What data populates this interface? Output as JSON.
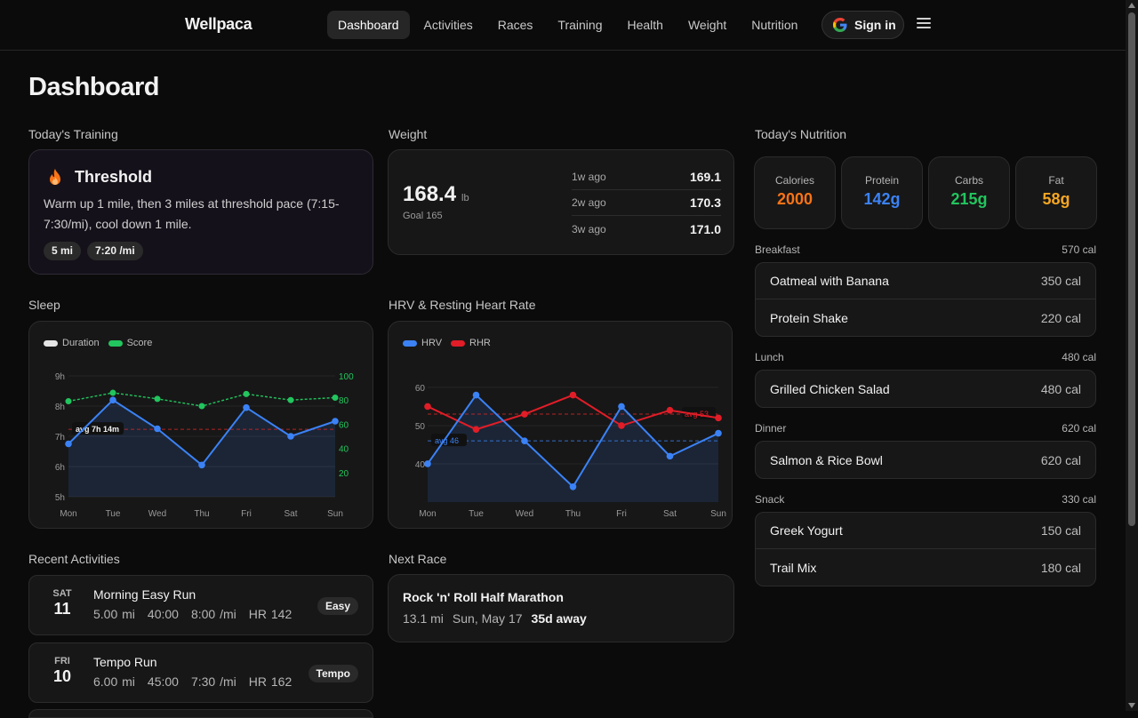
{
  "brand": "Wellpaca",
  "nav": {
    "items": [
      "Dashboard",
      "Activities",
      "Races",
      "Training",
      "Health",
      "Weight",
      "Nutrition"
    ],
    "active": "Dashboard",
    "signin_label": "Sign in"
  },
  "page_title": "Dashboard",
  "training": {
    "section": "Today's Training",
    "title": "Threshold",
    "description": "Warm up 1 mile, then 3 miles at threshold pace (7:15-7:30/mi), cool down 1 mile.",
    "distance": "5 mi",
    "pace": "7:20 /mi"
  },
  "weight": {
    "section": "Weight",
    "current": "168.4",
    "unit": "lb",
    "goal": "Goal 165",
    "history": [
      {
        "label": "1w ago",
        "value": "169.1"
      },
      {
        "label": "2w ago",
        "value": "170.3"
      },
      {
        "label": "3w ago",
        "value": "171.0"
      }
    ]
  },
  "nutrition": {
    "section": "Today's Nutrition",
    "macros": [
      {
        "label": "Calories",
        "value": "2000",
        "color": "#f97316"
      },
      {
        "label": "Protein",
        "value": "142g",
        "color": "#3b82f6"
      },
      {
        "label": "Carbs",
        "value": "215g",
        "color": "#22c55e"
      },
      {
        "label": "Fat",
        "value": "58g",
        "color": "#f5a623"
      }
    ],
    "meals": [
      {
        "name": "Breakfast",
        "total": "570 cal",
        "items": [
          {
            "name": "Oatmeal with Banana",
            "cal": "350 cal"
          },
          {
            "name": "Protein Shake",
            "cal": "220 cal"
          }
        ]
      },
      {
        "name": "Lunch",
        "total": "480 cal",
        "items": [
          {
            "name": "Grilled Chicken Salad",
            "cal": "480 cal"
          }
        ]
      },
      {
        "name": "Dinner",
        "total": "620 cal",
        "items": [
          {
            "name": "Salmon & Rice Bowl",
            "cal": "620 cal"
          }
        ]
      },
      {
        "name": "Snack",
        "total": "330 cal",
        "items": [
          {
            "name": "Greek Yogurt",
            "cal": "150 cal"
          },
          {
            "name": "Trail Mix",
            "cal": "180 cal"
          }
        ]
      }
    ]
  },
  "sleep": {
    "section": "Sleep",
    "legend": [
      "Duration",
      "Score"
    ],
    "avg_label": "avg 7h 14m"
  },
  "hrv": {
    "section": "HRV & Resting Heart Rate",
    "legend": [
      "HRV",
      "RHR"
    ],
    "avg_hrv_label": "avg 46",
    "avg_rhr_label": "avg 53"
  },
  "activities": {
    "section": "Recent Activities",
    "items": [
      {
        "dow": "SAT",
        "day": "11",
        "name": "Morning Easy Run",
        "distance": "5.00 mi",
        "time": "40:00",
        "pace": "8:00 /mi",
        "hr": "HR 142",
        "badge": "Easy"
      },
      {
        "dow": "FRI",
        "day": "10",
        "name": "Tempo Run",
        "distance": "6.00 mi",
        "time": "45:00",
        "pace": "7:30 /mi",
        "hr": "HR 162",
        "badge": "Tempo"
      }
    ]
  },
  "race": {
    "section": "Next Race",
    "name": "Rock 'n' Roll Half Marathon",
    "distance": "13.1 mi",
    "date": "Sun, May 17",
    "away": "35d away"
  },
  "chart_data": [
    {
      "type": "line",
      "x": [
        "Mon",
        "Tue",
        "Wed",
        "Thu",
        "Fri",
        "Sat",
        "Sun"
      ],
      "series": [
        {
          "name": "Duration",
          "unit": "hours",
          "values": [
            6.75,
            8.2,
            7.25,
            6.05,
            7.95,
            7.0,
            7.5
          ],
          "color": "#3b82f6",
          "axis": "left"
        },
        {
          "name": "Score",
          "values": [
            79,
            86,
            81,
            75,
            85,
            80,
            82
          ],
          "color": "#22c55e",
          "axis": "right"
        }
      ],
      "ylim_left": [
        5,
        9
      ],
      "yticks_left": [
        "5h",
        "6h",
        "7h",
        "8h",
        "9h"
      ],
      "ylim_right": [
        0,
        100
      ],
      "yticks_right": [
        "20",
        "40",
        "60",
        "80",
        "100"
      ],
      "avg_line": 7.23
    },
    {
      "type": "line",
      "x": [
        "Mon",
        "Tue",
        "Wed",
        "Thu",
        "Fri",
        "Sat",
        "Sun"
      ],
      "series": [
        {
          "name": "HRV",
          "values": [
            40,
            58,
            46,
            34,
            55,
            42,
            48
          ],
          "color": "#3b82f6"
        },
        {
          "name": "RHR",
          "values": [
            55,
            49,
            53,
            58,
            50,
            54,
            52
          ],
          "color": "#e11d28"
        }
      ],
      "ylim": [
        30,
        63
      ],
      "yticks": [
        "40",
        "50",
        "60"
      ],
      "avg_hrv": 46,
      "avg_rhr": 53
    }
  ]
}
